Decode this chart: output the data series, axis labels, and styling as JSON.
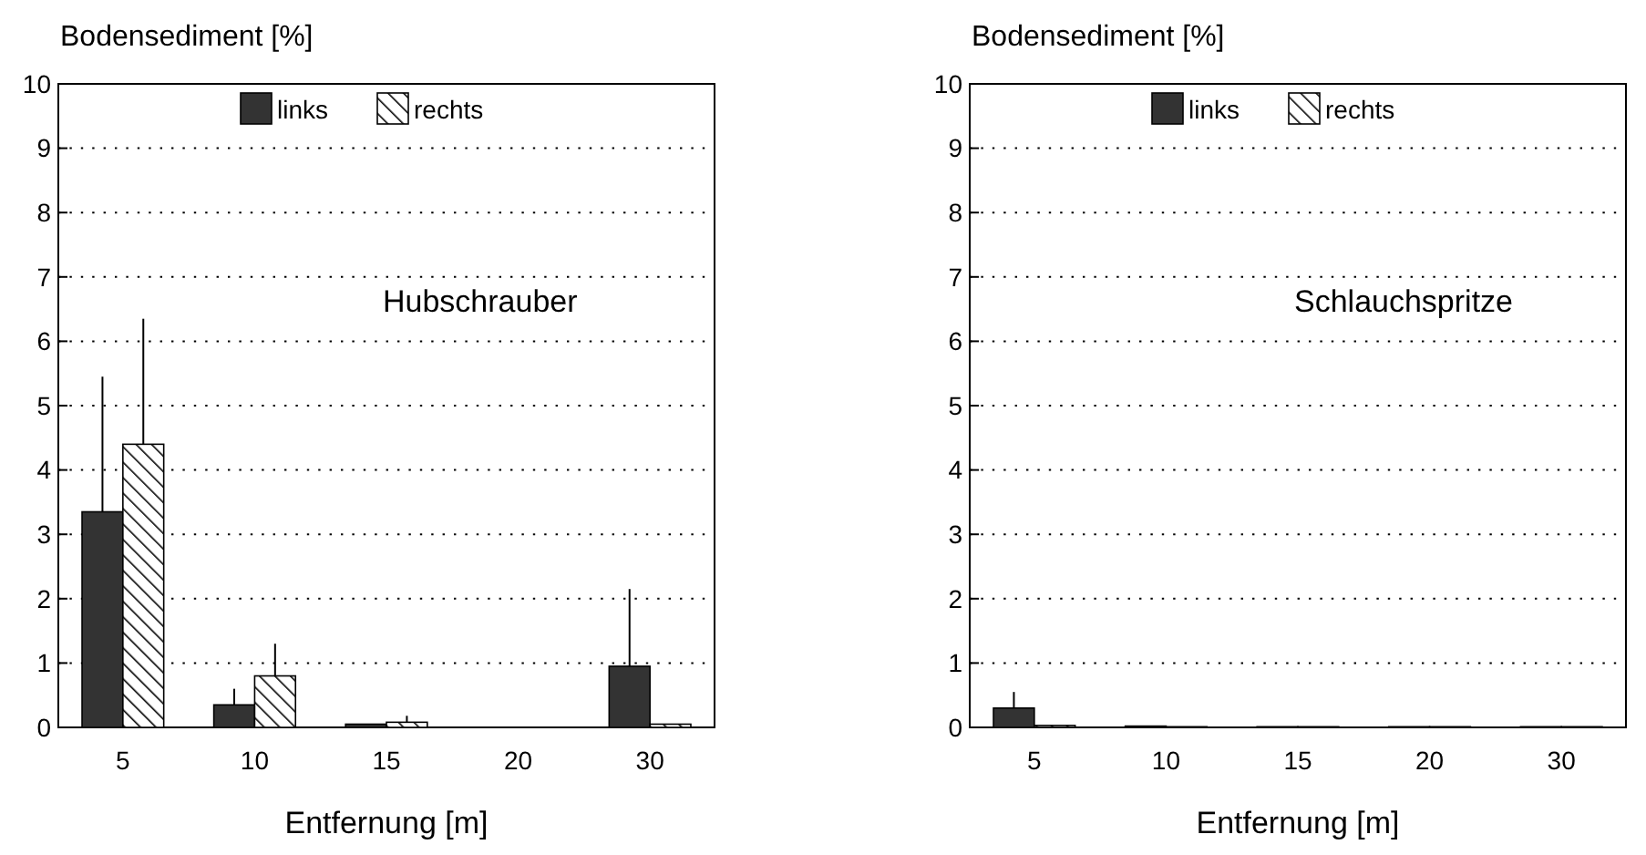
{
  "chart_data": [
    {
      "type": "bar",
      "categories": [
        "5",
        "10",
        "15",
        "20",
        "30"
      ],
      "xlabel": "Entfernung [m]",
      "ylabel": "Bodensediment [%]",
      "ylim": [
        0,
        10
      ],
      "yticks": [
        0,
        1,
        2,
        3,
        4,
        5,
        6,
        7,
        8,
        9,
        10
      ],
      "grid": "y",
      "legend": "top",
      "annotations": [
        "Hubschrauber"
      ],
      "series": [
        {
          "name": "links",
          "color": "#333333",
          "values": [
            3.35,
            0.35,
            0.05,
            0,
            0.95
          ],
          "errors": [
            [
              3.35,
              5.45
            ],
            [
              0.35,
              0.6
            ],
            null,
            null,
            [
              0.95,
              2.15
            ]
          ]
        },
        {
          "name": "rechts",
          "color": "#000000",
          "values": [
            4.4,
            0.8,
            0.08,
            0,
            0.05
          ],
          "errors": [
            [
              4.4,
              6.35
            ],
            [
              0.8,
              1.3
            ],
            [
              0.08,
              0.18
            ],
            null,
            null
          ]
        }
      ]
    },
    {
      "type": "bar",
      "categories": [
        "5",
        "10",
        "15",
        "20",
        "30"
      ],
      "xlabel": "Entfernung [m]",
      "ylabel": "Bodensediment [%]",
      "ylim": [
        0,
        10
      ],
      "yticks": [
        0,
        1,
        2,
        3,
        4,
        5,
        6,
        7,
        8,
        9,
        10
      ],
      "grid": "y",
      "legend": "top",
      "annotations": [
        "Schlauchspritze"
      ],
      "series": [
        {
          "name": "links",
          "color": "#333333",
          "values": [
            0.3,
            0.02,
            0.01,
            0.01,
            0.01
          ],
          "errors": [
            [
              0.3,
              0.55
            ],
            null,
            null,
            null,
            null
          ]
        },
        {
          "name": "rechts",
          "color": "#000000",
          "values": [
            0.03,
            0.01,
            0.01,
            0.01,
            0.01
          ]
        }
      ]
    }
  ]
}
